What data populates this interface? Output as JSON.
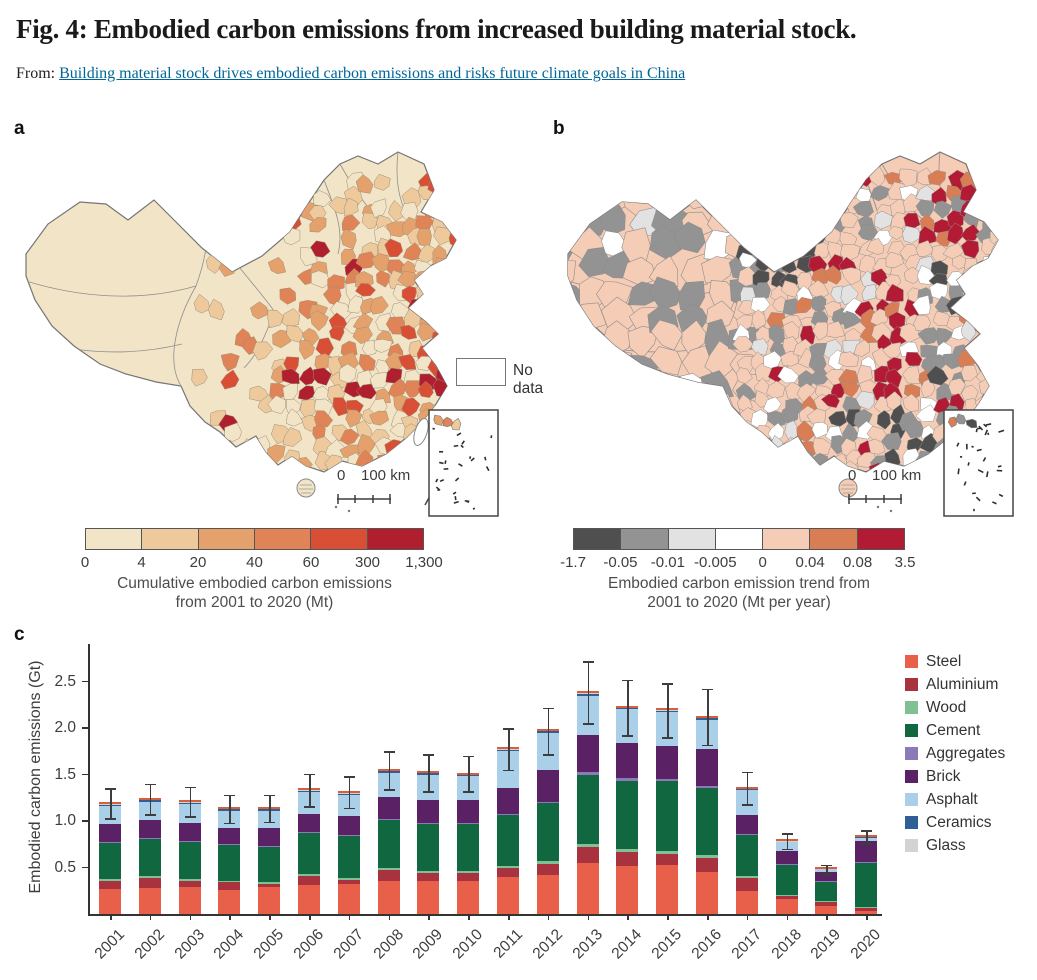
{
  "page": {
    "title": "Fig. 4: Embodied carbon emissions from increased building material stock.",
    "from_label": "From:",
    "source_link": "Building material stock drives embodied carbon emissions and risks future climate goals in China"
  },
  "panel_a": {
    "label": "a",
    "no_data_label": "No data",
    "scalebar": {
      "zero": "0",
      "distance": "100 km"
    },
    "colorbar": {
      "colors": [
        "#f2e4c6",
        "#edc99b",
        "#e5a16b",
        "#e08356",
        "#d94f35",
        "#b01f2e"
      ],
      "ticks": [
        "0",
        "4",
        "20",
        "40",
        "60",
        "300",
        "1,300"
      ],
      "caption_line1": "Cumulative embodied carbon emissions",
      "caption_line2": "from 2001 to 2020 (Mt)"
    },
    "map": {
      "base_color": "#f2e4c6",
      "border_color": "#757575",
      "no_data_color": "#ffffff"
    }
  },
  "panel_b": {
    "label": "b",
    "scalebar": {
      "zero": "0",
      "distance": "100 km"
    },
    "colorbar": {
      "colors": [
        "#4f4f4f",
        "#939393",
        "#e2e2e2",
        "#ffffff",
        "#f5cdb6",
        "#d97e54",
        "#b31b34"
      ],
      "ticks": [
        "-1.7",
        "-0.05",
        "-0.01",
        "-0.005",
        "0",
        "0.04",
        "0.08",
        "3.5"
      ],
      "caption_line1": "Embodied carbon emission trend from",
      "caption_line2": "2001 to 2020 (Mt per year)"
    },
    "map": {
      "base_color": "#f5cdb6",
      "border_color": "#757575"
    }
  },
  "panel_c": {
    "label": "c"
  },
  "chart_data": {
    "type": "stacked_bar",
    "ylabel": "Embodied carbon emissions (Gt)",
    "ylim": [
      0,
      2.8
    ],
    "ytick_labels": [
      "0.5",
      "1.0",
      "1.5",
      "2.0",
      "2.5"
    ],
    "yticks": [
      0.5,
      1.0,
      1.5,
      2.0,
      2.5
    ],
    "grid": false,
    "legend_position": "right",
    "axis_color": "#333333",
    "error_bar_color": "#3d3d3d",
    "bar_top_line_color": "#d95f3b",
    "categories": [
      "2001",
      "2002",
      "2003",
      "2004",
      "2005",
      "2006",
      "2007",
      "2008",
      "2009",
      "2010",
      "2011",
      "2012",
      "2013",
      "2014",
      "2015",
      "2016",
      "2017",
      "2018",
      "2019",
      "2020"
    ],
    "series": [
      {
        "name": "Steel",
        "color": "#e8604a",
        "values": [
          0.27,
          0.28,
          0.29,
          0.26,
          0.29,
          0.31,
          0.32,
          0.35,
          0.35,
          0.36,
          0.4,
          0.42,
          0.55,
          0.52,
          0.53,
          0.45,
          0.25,
          0.16,
          0.09,
          0.03
        ]
      },
      {
        "name": "Aluminium",
        "color": "#a8333f",
        "values": [
          0.09,
          0.11,
          0.07,
          0.08,
          0.03,
          0.1,
          0.05,
          0.12,
          0.09,
          0.08,
          0.1,
          0.12,
          0.17,
          0.15,
          0.12,
          0.15,
          0.14,
          0.03,
          0.04,
          0.04
        ]
      },
      {
        "name": "Wood",
        "color": "#7fc195",
        "values": [
          0.02,
          0.02,
          0.02,
          0.02,
          0.02,
          0.02,
          0.02,
          0.02,
          0.02,
          0.02,
          0.02,
          0.03,
          0.03,
          0.03,
          0.03,
          0.03,
          0.02,
          0.01,
          0.01,
          0.01
        ]
      },
      {
        "name": "Cement",
        "color": "#11673f",
        "values": [
          0.38,
          0.4,
          0.39,
          0.38,
          0.38,
          0.44,
          0.45,
          0.52,
          0.51,
          0.51,
          0.55,
          0.62,
          0.75,
          0.73,
          0.75,
          0.73,
          0.44,
          0.33,
          0.2,
          0.47
        ]
      },
      {
        "name": "Aggregates",
        "color": "#8a7ab8",
        "values": [
          0.01,
          0.01,
          0.01,
          0.01,
          0.01,
          0.01,
          0.01,
          0.01,
          0.01,
          0.01,
          0.01,
          0.02,
          0.03,
          0.03,
          0.02,
          0.02,
          0.01,
          0.01,
          0.01,
          0.01
        ]
      },
      {
        "name": "Brick",
        "color": "#5a2165",
        "values": [
          0.2,
          0.19,
          0.2,
          0.17,
          0.19,
          0.2,
          0.2,
          0.24,
          0.25,
          0.25,
          0.27,
          0.34,
          0.4,
          0.38,
          0.36,
          0.4,
          0.2,
          0.14,
          0.1,
          0.23
        ]
      },
      {
        "name": "Asphalt",
        "color": "#aacfe8",
        "values": [
          0.19,
          0.2,
          0.2,
          0.19,
          0.19,
          0.23,
          0.23,
          0.26,
          0.27,
          0.25,
          0.4,
          0.4,
          0.42,
          0.36,
          0.36,
          0.31,
          0.27,
          0.09,
          0.03,
          0.03
        ]
      },
      {
        "name": "Ceramics",
        "color": "#2f5f96",
        "values": [
          0.015,
          0.015,
          0.015,
          0.015,
          0.015,
          0.015,
          0.015,
          0.015,
          0.015,
          0.015,
          0.015,
          0.015,
          0.02,
          0.015,
          0.015,
          0.015,
          0.01,
          0.01,
          0.005,
          0.008
        ]
      },
      {
        "name": "Glass",
        "color": "#d3d3d3",
        "values": [
          0.005,
          0.005,
          0.005,
          0.005,
          0.005,
          0.005,
          0.005,
          0.005,
          0.005,
          0.005,
          0.005,
          0.005,
          0.01,
          0.005,
          0.005,
          0.005,
          0.005,
          0.003,
          0.003,
          0.003
        ]
      }
    ],
    "error_bars": {
      "low": [
        1.03,
        1.07,
        1.05,
        0.98,
        0.99,
        1.16,
        1.14,
        1.34,
        1.32,
        1.32,
        1.55,
        1.72,
        2.05,
        1.92,
        1.9,
        1.82,
        1.18,
        0.7,
        0.43,
        0.76
      ],
      "high": [
        1.35,
        1.4,
        1.37,
        1.28,
        1.28,
        1.51,
        1.48,
        1.75,
        1.72,
        1.7,
        2.0,
        2.22,
        2.72,
        2.52,
        2.48,
        2.42,
        1.53,
        0.87,
        0.53,
        0.9
      ]
    }
  }
}
